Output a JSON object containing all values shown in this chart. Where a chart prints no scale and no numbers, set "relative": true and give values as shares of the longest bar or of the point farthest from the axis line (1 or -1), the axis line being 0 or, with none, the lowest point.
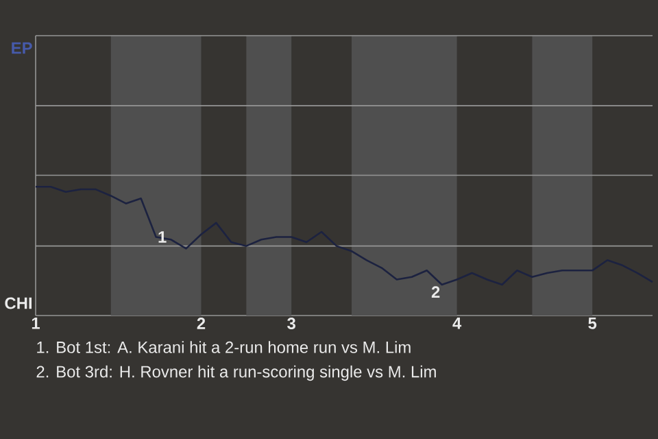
{
  "chart_data": {
    "type": "line",
    "categories": [
      "1",
      null,
      null,
      null,
      null,
      null,
      null,
      null,
      null,
      null,
      null,
      "2",
      null,
      null,
      null,
      null,
      null,
      "3",
      null,
      null,
      null,
      null,
      null,
      null,
      null,
      null,
      null,
      null,
      "4",
      null,
      null,
      null,
      null,
      null,
      null,
      null,
      null,
      "5",
      null,
      null,
      null,
      null
    ],
    "relative": true,
    "series": [
      {
        "color": "#1c2240",
        "values": [
          1.0,
          1.0,
          0.96,
          0.98,
          0.98,
          0.93,
          0.87,
          0.91,
          0.61,
          0.59,
          0.52,
          0.63,
          0.72,
          0.57,
          0.54,
          0.59,
          0.61,
          0.61,
          0.57,
          0.65,
          0.54,
          0.5,
          0.43,
          0.37,
          0.28,
          0.3,
          0.35,
          0.24,
          0.28,
          0.33,
          0.28,
          0.24,
          0.35,
          0.3,
          0.33,
          0.35,
          0.35,
          0.35,
          0.43,
          0.39,
          0.33,
          0.26
        ]
      }
    ],
    "ref_lines": [
      {
        "axis": "y",
        "value": 0.54,
        "color": "#969696"
      },
      {
        "axis": "y",
        "value": 1.09,
        "color": "#969696"
      },
      {
        "axis": "y",
        "value": 1.63,
        "color": "#969696"
      }
    ],
    "annotations": [
      "EP",
      "CHI",
      {
        "text": "1",
        "y": 0.61
      },
      {
        "text": "2",
        "y": 0.24
      },
      "1. Bot 1st: A. Karani hit a 2-run home run vs M. Lim",
      "2. Bot 3rd: H. Rovner hit a run-scoring single vs M. Lim"
    ]
  }
}
